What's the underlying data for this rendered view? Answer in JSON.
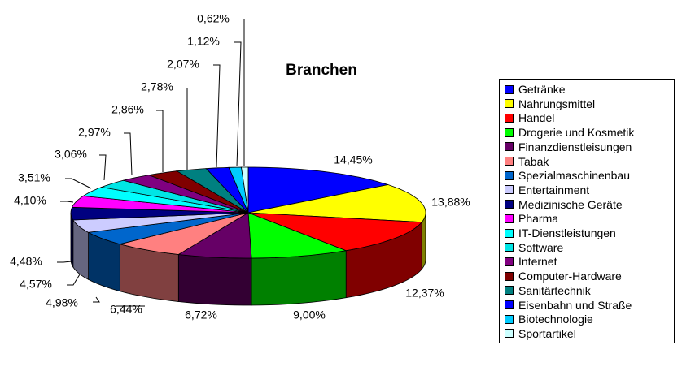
{
  "chart_data": {
    "type": "pie",
    "title": "Branchen",
    "style": "3d-exploded-legend-right",
    "slices": [
      {
        "label": "Getränke",
        "value": 14.45,
        "value_label": "14,45%",
        "color": "#0000ff"
      },
      {
        "label": "Nahrungsmittel",
        "value": 13.88,
        "value_label": "13,88%",
        "color": "#ffff00"
      },
      {
        "label": "Handel",
        "value": 12.37,
        "value_label": "12,37%",
        "color": "#ff0000"
      },
      {
        "label": "Drogerie und Kosmetik",
        "value": 9.0,
        "value_label": "9,00%",
        "color": "#00ff00"
      },
      {
        "label": "Finanzdienstleisungen",
        "value": 6.72,
        "value_label": "6,72%",
        "color": "#660066"
      },
      {
        "label": "Tabak",
        "value": 6.44,
        "value_label": "6,44%",
        "color": "#ff8080"
      },
      {
        "label": "Spezialmaschinenbau",
        "value": 4.98,
        "value_label": "4,98%",
        "color": "#0066cc"
      },
      {
        "label": "Entertainment",
        "value": 4.57,
        "value_label": "4,57%",
        "color": "#ccccff"
      },
      {
        "label": "Medizinische Geräte",
        "value": 4.48,
        "value_label": "4,48%",
        "color": "#000080"
      },
      {
        "label": "Pharma",
        "value": 4.1,
        "value_label": "4,10%",
        "color": "#ff00ff"
      },
      {
        "label": "IT-Dienstleistungen",
        "value": 3.51,
        "value_label": "3,51%",
        "color": "#00ffff"
      },
      {
        "label": "Software",
        "value": 3.06,
        "value_label": "3,06%",
        "color": "#00e5e5"
      },
      {
        "label": "Internet",
        "value": 2.97,
        "value_label": "2,97%",
        "color": "#800080"
      },
      {
        "label": "Computer-Hardware",
        "value": 2.86,
        "value_label": "2,86%",
        "color": "#800000"
      },
      {
        "label": "Sanitärtechnik",
        "value": 2.78,
        "value_label": "2,78%",
        "color": "#008080"
      },
      {
        "label": "Eisenbahn und Straße",
        "value": 2.07,
        "value_label": "2,07%",
        "color": "#0000ff"
      },
      {
        "label": "Biotechnologie",
        "value": 1.12,
        "value_label": "1,12%",
        "color": "#00ccff"
      },
      {
        "label": "Sportartikel",
        "value": 0.62,
        "value_label": "0,62%",
        "color": "#ccffff"
      }
    ],
    "legend_position": "right"
  }
}
